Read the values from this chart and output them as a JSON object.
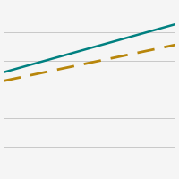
{
  "lines": [
    {
      "x": [
        0,
        1
      ],
      "y": [
        0.6,
        0.88
      ],
      "color": "#008080",
      "linestyle": "solid",
      "linewidth": 1.8
    },
    {
      "x": [
        0,
        1
      ],
      "y": [
        0.55,
        0.76
      ],
      "color": "#b8860b",
      "linestyle": "dashed",
      "linewidth": 2.0,
      "dashes": [
        7,
        4
      ]
    }
  ],
  "ylim": [
    0.0,
    1.0
  ],
  "xlim": [
    0.0,
    1.0
  ],
  "background_color": "#f5f5f5",
  "grid_color": "#c8c8c8",
  "n_gridlines": 6,
  "figsize": [
    2.0,
    2.0
  ],
  "dpi": 100
}
